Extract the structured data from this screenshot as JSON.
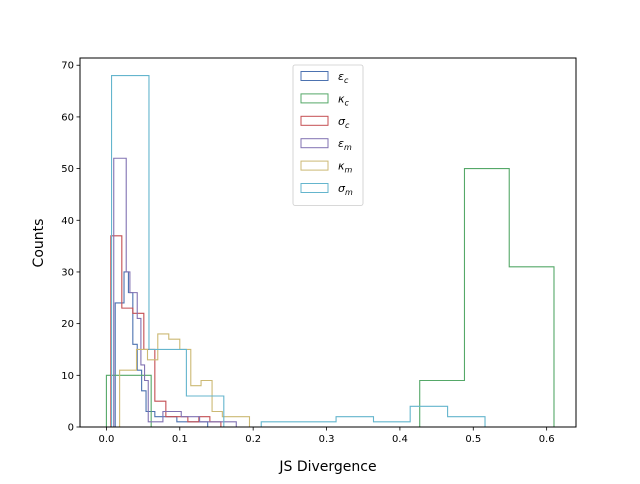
{
  "chart_data": {
    "type": "histogram",
    "xlabel": "JS Divergence",
    "ylabel": "Counts",
    "xlim": [
      -0.036,
      0.64
    ],
    "ylim": [
      0,
      71.4
    ],
    "xticks": [
      "0.0",
      "0.1",
      "0.2",
      "0.3",
      "0.4",
      "0.5",
      "0.6"
    ],
    "yticks": [
      "0",
      "10",
      "20",
      "30",
      "40",
      "50",
      "60",
      "70"
    ],
    "histtype": "step",
    "grid": false,
    "legend_position": "top-center",
    "series": [
      {
        "name": "ε",
        "sub": "c",
        "color": "#4c72b0",
        "edges": [
          0.012,
          0.018,
          0.024,
          0.03,
          0.036,
          0.042,
          0.048,
          0.054,
          0.06,
          0.066,
          0.072,
          0.078,
          0.084,
          0.09,
          0.096,
          0.102,
          0.108,
          0.114,
          0.12,
          0.126,
          0.132,
          0.138
        ],
        "counts": [
          24,
          24,
          30,
          26,
          16,
          11,
          7,
          3,
          3,
          2,
          2,
          2,
          2,
          2,
          1,
          1,
          1,
          1,
          1,
          1,
          1
        ]
      },
      {
        "name": "κ",
        "sub": "c",
        "color": "#55a868",
        "edges": [
          0.0,
          0.061,
          0.122,
          0.183,
          0.244,
          0.305,
          0.366,
          0.427,
          0.488,
          0.549,
          0.61
        ],
        "counts": [
          10,
          0,
          0,
          0,
          0,
          0,
          0,
          9,
          50,
          31
        ]
      },
      {
        "name": "σ",
        "sub": "c",
        "color": "#c44e52",
        "edges": [
          0.006,
          0.021,
          0.036,
          0.051,
          0.066,
          0.081,
          0.096,
          0.111,
          0.126,
          0.141,
          0.156,
          0.171
        ],
        "counts": [
          37,
          23,
          22,
          15,
          5,
          2,
          2,
          1,
          2,
          1,
          0
        ]
      },
      {
        "name": "ε",
        "sub": "m",
        "color": "#8172b2",
        "edges": [
          0.01,
          0.027,
          0.032,
          0.042,
          0.047,
          0.052,
          0.057,
          0.062,
          0.067,
          0.077,
          0.082,
          0.087,
          0.092,
          0.097,
          0.102,
          0.107,
          0.112,
          0.117,
          0.122,
          0.127,
          0.132,
          0.137,
          0.142,
          0.147,
          0.152,
          0.157,
          0.162,
          0.167,
          0.172,
          0.177,
          0.182
        ],
        "counts": [
          52,
          30,
          26,
          21,
          12,
          9,
          1,
          1,
          1,
          3,
          3,
          3,
          3,
          3,
          2,
          2,
          2,
          2,
          2,
          1,
          1,
          1,
          1,
          1,
          1,
          1,
          1,
          1,
          1,
          0
        ]
      },
      {
        "name": "κ",
        "sub": "m",
        "color": "#ccb974",
        "edges": [
          0.018,
          0.027,
          0.041,
          0.056,
          0.07,
          0.085,
          0.1,
          0.115,
          0.129,
          0.144,
          0.158,
          0.173,
          0.195
        ],
        "counts": [
          11,
          11,
          15,
          13,
          18,
          17,
          15,
          8,
          9,
          3,
          2,
          2
        ]
      },
      {
        "name": "σ",
        "sub": "m",
        "color": "#64b5cd",
        "edges": [
          0.007,
          0.058,
          0.109,
          0.16,
          0.211,
          0.262,
          0.313,
          0.364,
          0.414,
          0.465,
          0.516
        ],
        "counts": [
          68,
          15,
          6,
          0,
          1,
          1,
          2,
          1,
          4,
          2
        ]
      }
    ]
  }
}
